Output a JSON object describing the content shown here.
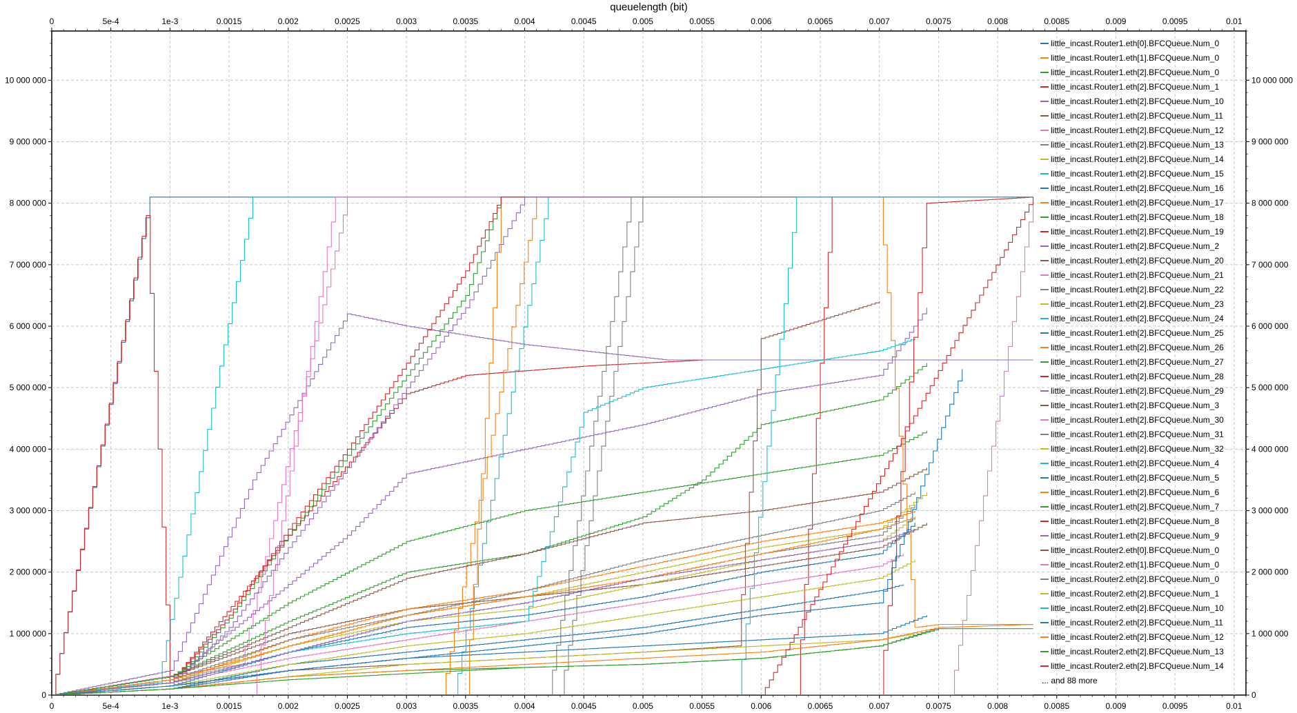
{
  "chart_data": {
    "type": "line",
    "title": "queuelength (bit)",
    "xlabel": "",
    "ylabel": "",
    "xlim": [
      0,
      0.0101
    ],
    "ylim": [
      0,
      10800000
    ],
    "x_ticks": [
      "0",
      "5e-4",
      "1e-3",
      "0.0015",
      "0.002",
      "0.0025",
      "0.003",
      "0.0035",
      "0.004",
      "0.0045",
      "0.005",
      "0.0055",
      "0.006",
      "0.0065",
      "0.007",
      "0.0075",
      "0.008",
      "0.0085",
      "0.009",
      "0.0095",
      "0.01"
    ],
    "x_tick_values": [
      0,
      0.0005,
      0.001,
      0.0015,
      0.002,
      0.0025,
      0.003,
      0.0035,
      0.004,
      0.0045,
      0.005,
      0.0055,
      0.006,
      0.0065,
      0.007,
      0.0075,
      0.008,
      0.0085,
      0.009,
      0.0095,
      0.01
    ],
    "y_ticks": [
      "0",
      "1 000 000",
      "2 000 000",
      "3 000 000",
      "4 000 000",
      "5 000 000",
      "6 000 000",
      "7 000 000",
      "8 000 000",
      "9 000 000",
      "10 000 000"
    ],
    "y_tick_values": [
      0,
      1000000,
      2000000,
      3000000,
      4000000,
      5000000,
      6000000,
      7000000,
      8000000,
      9000000,
      10000000
    ],
    "grid": true,
    "legend_position": "top-right",
    "legend_more": "... and 88 more",
    "series": [
      {
        "name": "little_incast.Router1.eth[0].BFCQueue.Num_0",
        "color": "#1f77b4",
        "x": [
          0,
          0.00083,
          0.0083
        ],
        "y": [
          0,
          8100000,
          8100000
        ]
      },
      {
        "name": "little_incast.Router1.eth[1].BFCQueue.Num_0",
        "color": "#ff7f0e",
        "x": [
          0,
          0.0025,
          0.0035,
          0.0038,
          0.0045,
          0.0055,
          0.007,
          0.0073,
          0.0075,
          0.0083
        ],
        "y": [
          0,
          0,
          0,
          8100000,
          8100000,
          8100000,
          8100000,
          1100000,
          1150000,
          1150000
        ]
      },
      {
        "name": "little_incast.Router1.eth[2].BFCQueue.Num_0",
        "color": "#2ca02c",
        "x": [
          0,
          0.001,
          0.0015,
          0.002,
          0.0025,
          0.003,
          0.0035,
          0.0038,
          0.0083
        ],
        "y": [
          0,
          150000,
          1250000,
          2600000,
          3900000,
          5200000,
          6500000,
          8100000,
          8100000
        ]
      },
      {
        "name": "little_incast.Router1.eth[2].BFCQueue.Num_1",
        "color": "#d62728",
        "x": [
          0,
          0.0008,
          0.001,
          0.002,
          0.003,
          0.0035,
          0.0045,
          0.0055,
          0.0083
        ],
        "y": [
          0,
          7800000,
          200000,
          2600000,
          4900000,
          5200000,
          5350000,
          5450000,
          5450000
        ]
      },
      {
        "name": "little_incast.Router1.eth[2].BFCQueue.Num_10",
        "color": "#9467bd",
        "x": [
          0,
          0.001,
          0.0017,
          0.0025,
          0.003,
          0.004,
          0.0052,
          0.0083
        ],
        "y": [
          0,
          400000,
          3500000,
          6200000,
          6000000,
          5700000,
          5450000,
          5450000
        ]
      },
      {
        "name": "little_incast.Router1.eth[2].BFCQueue.Num_11",
        "color": "#8c564b",
        "x": [
          0,
          0.001,
          0.002,
          0.003,
          0.004,
          0.005,
          0.006,
          0.007,
          0.0074
        ],
        "y": [
          0,
          300000,
          1000000,
          1400000,
          1600000,
          1800000,
          2100000,
          2400000,
          2800000
        ]
      },
      {
        "name": "little_incast.Router1.eth[2].BFCQueue.Num_12",
        "color": "#e377c2",
        "x": [
          0,
          0.0016,
          0.0025,
          0.0083
        ],
        "y": [
          0,
          500000,
          8100000,
          8100000
        ]
      },
      {
        "name": "little_incast.Router1.eth[2].BFCQueue.Num_13",
        "color": "#7f7f7f",
        "x": [
          0,
          0.001,
          0.002,
          0.003,
          0.004,
          0.005,
          0.006,
          0.007,
          0.0073
        ],
        "y": [
          0,
          200000,
          700000,
          1200000,
          1500000,
          1900000,
          2300000,
          2600000,
          3100000
        ]
      },
      {
        "name": "little_incast.Router1.eth[2].BFCQueue.Num_14",
        "color": "#bcbd22",
        "x": [
          0,
          0.001,
          0.002,
          0.003,
          0.004,
          0.005,
          0.006,
          0.007,
          0.0074
        ],
        "y": [
          0,
          250000,
          800000,
          1300000,
          1600000,
          2000000,
          2400000,
          2700000,
          3300000
        ]
      },
      {
        "name": "little_incast.Router1.eth[2].BFCQueue.Num_15",
        "color": "#17becf",
        "x": [
          0,
          0.0009,
          0.0017,
          0.0083
        ],
        "y": [
          0,
          200000,
          8100000,
          8100000
        ]
      },
      {
        "name": "little_incast.Router1.eth[2].BFCQueue.Num_16",
        "color": "#1f77b4",
        "x": [
          0,
          0.001,
          0.002,
          0.003,
          0.004,
          0.005,
          0.006,
          0.007,
          0.0072
        ],
        "y": [
          0,
          100000,
          500000,
          700000,
          900000,
          1100000,
          1400000,
          1700000,
          1800000
        ]
      },
      {
        "name": "little_incast.Router1.eth[2].BFCQueue.Num_17",
        "color": "#ff7f0e",
        "x": [
          0,
          0.001,
          0.002,
          0.003,
          0.004,
          0.005,
          0.006,
          0.007,
          0.0073
        ],
        "y": [
          0,
          200000,
          900000,
          1400000,
          1700000,
          2100000,
          2500000,
          2800000,
          3000000
        ]
      },
      {
        "name": "little_incast.Router1.eth[2].BFCQueue.Num_18",
        "color": "#2ca02c",
        "x": [
          0,
          0.001,
          0.002,
          0.003,
          0.004,
          0.005,
          0.0055,
          0.006,
          0.007,
          0.0074
        ],
        "y": [
          0,
          300000,
          1200000,
          2000000,
          2300000,
          2900000,
          3500000,
          4400000,
          4800000,
          5400000
        ]
      },
      {
        "name": "little_incast.Router1.eth[2].BFCQueue.Num_19",
        "color": "#d62728",
        "x": [
          0,
          0.004,
          0.0055,
          0.0059,
          0.0063,
          0.0066,
          0.0083
        ],
        "y": [
          0,
          0,
          0,
          0,
          0,
          8100000,
          8100000
        ]
      },
      {
        "name": "little_incast.Router1.eth[2].BFCQueue.Num_2",
        "color": "#9467bd",
        "x": [
          0,
          0.001,
          0.002,
          0.0025,
          0.003,
          0.004,
          0.005,
          0.006,
          0.007,
          0.0074
        ],
        "y": [
          0,
          250000,
          1800000,
          2600000,
          3600000,
          4000000,
          4400000,
          4900000,
          5200000,
          6300000
        ]
      },
      {
        "name": "little_incast.Router1.eth[2].BFCQueue.Num_20",
        "color": "#8c564b",
        "x": [
          0,
          0.001,
          0.002,
          0.003,
          0.004,
          0.005,
          0.0058,
          0.006,
          0.007
        ],
        "y": [
          0,
          150000,
          400000,
          500000,
          600000,
          700000,
          800000,
          5800000,
          6400000
        ]
      },
      {
        "name": "little_incast.Router1.eth[2].BFCQueue.Num_21",
        "color": "#e377c2",
        "x": [
          0,
          0.0017,
          0.0024,
          0.0083
        ],
        "y": [
          0,
          0,
          8100000,
          8100000
        ]
      },
      {
        "name": "little_incast.Router1.eth[2].BFCQueue.Num_22",
        "color": "#7f7f7f",
        "x": [
          0,
          0.0043,
          0.005,
          0.0083
        ],
        "y": [
          0,
          0,
          8100000,
          8100000
        ]
      },
      {
        "name": "little_incast.Router1.eth[2].BFCQueue.Num_23",
        "color": "#bcbd22",
        "x": [
          0,
          0.001,
          0.002,
          0.003,
          0.004,
          0.005,
          0.006,
          0.007,
          0.0073
        ],
        "y": [
          0,
          200000,
          800000,
          1200000,
          1400000,
          1800000,
          2200000,
          2500000,
          2900000
        ]
      },
      {
        "name": "little_incast.Router1.eth[2].BFCQueue.Num_24",
        "color": "#17becf",
        "x": [
          0,
          0.0034,
          0.0042,
          0.0083
        ],
        "y": [
          0,
          0,
          8100000,
          8100000
        ]
      },
      {
        "name": "little_incast.Router1.eth[2].BFCQueue.Num_25",
        "color": "#1f77b4",
        "x": [
          0,
          0.001,
          0.002,
          0.003,
          0.004,
          0.005,
          0.006,
          0.007,
          0.0073
        ],
        "y": [
          0,
          150000,
          700000,
          1100000,
          1300000,
          1600000,
          2000000,
          2300000,
          2800000
        ]
      },
      {
        "name": "little_incast.Router1.eth[2].BFCQueue.Num_26",
        "color": "#ff7f0e",
        "x": [
          0,
          0.0033,
          0.0041,
          0.0083
        ],
        "y": [
          0,
          0,
          8100000,
          8100000
        ]
      },
      {
        "name": "little_incast.Router1.eth[2].BFCQueue.Num_27",
        "color": "#2ca02c",
        "x": [
          0,
          0.001,
          0.002,
          0.003,
          0.004,
          0.005,
          0.006,
          0.007,
          0.0075
        ],
        "y": [
          0,
          100000,
          300000,
          400000,
          450000,
          500000,
          600000,
          800000,
          1100000
        ]
      },
      {
        "name": "little_incast.Router1.eth[2].BFCQueue.Num_28",
        "color": "#d62728",
        "x": [
          0,
          0.001,
          0.0015,
          0.002,
          0.0025,
          0.003,
          0.0035,
          0.0038,
          0.0083
        ],
        "y": [
          0,
          200000,
          1300000,
          2700000,
          4000000,
          5400000,
          6900000,
          8100000,
          8100000
        ]
      },
      {
        "name": "little_incast.Router1.eth[2].BFCQueue.Num_29",
        "color": "#9467bd",
        "x": [
          0,
          0.001,
          0.0015,
          0.002,
          0.0025,
          0.003,
          0.0035,
          0.004,
          0.0083
        ],
        "y": [
          0,
          150000,
          1100000,
          2400000,
          3700000,
          5000000,
          6300000,
          8100000,
          8100000
        ]
      },
      {
        "name": "little_incast.Router1.eth[2].BFCQueue.Num_3",
        "color": "#8c564b",
        "x": [
          0,
          0.001,
          0.002,
          0.003,
          0.004,
          0.005,
          0.006,
          0.007,
          0.0074
        ],
        "y": [
          0,
          300000,
          1100000,
          1900000,
          2300000,
          2800000,
          3000000,
          3300000,
          3700000
        ]
      },
      {
        "name": "little_incast.Router1.eth[2].BFCQueue.Num_30",
        "color": "#e377c2",
        "x": [
          0,
          0.001,
          0.002,
          0.003,
          0.004,
          0.005,
          0.006,
          0.007,
          0.0072
        ],
        "y": [
          0,
          200000,
          600000,
          900000,
          1200000,
          1500000,
          1800000,
          2100000,
          2300000
        ]
      },
      {
        "name": "little_incast.Router1.eth[2].BFCQueue.Num_31",
        "color": "#7f7f7f",
        "x": [
          0,
          0.001,
          0.002,
          0.003,
          0.004,
          0.005,
          0.006,
          0.007,
          0.0073
        ],
        "y": [
          0,
          250000,
          900000,
          1300000,
          1700000,
          2200000,
          2600000,
          3000000,
          3300000
        ]
      },
      {
        "name": "little_incast.Router1.eth[2].BFCQueue.Num_32",
        "color": "#bcbd22",
        "x": [
          0,
          0.001,
          0.002,
          0.003,
          0.004,
          0.005,
          0.006,
          0.007,
          0.0073
        ],
        "y": [
          0,
          150000,
          500000,
          800000,
          1000000,
          1300000,
          1600000,
          1900000,
          2200000
        ]
      },
      {
        "name": "little_incast.Router1.eth[2].BFCQueue.Num_4",
        "color": "#17becf",
        "x": [
          0,
          0.001,
          0.002,
          0.003,
          0.004,
          0.0045,
          0.005,
          0.006,
          0.007,
          0.0073
        ],
        "y": [
          0,
          200000,
          700000,
          1000000,
          1200000,
          4600000,
          5000000,
          5300000,
          5600000,
          5800000
        ]
      },
      {
        "name": "little_incast.Router1.eth[2].BFCQueue.Num_5",
        "color": "#1f77b4",
        "x": [
          0,
          0.001,
          0.002,
          0.003,
          0.004,
          0.005,
          0.006,
          0.007,
          0.0077
        ],
        "y": [
          0,
          100000,
          400000,
          600000,
          800000,
          1000000,
          1300000,
          1500000,
          5300000
        ]
      },
      {
        "name": "little_incast.Router1.eth[2].BFCQueue.Num_6",
        "color": "#ff7f0e",
        "x": [
          0,
          0.001,
          0.002,
          0.003,
          0.004,
          0.005,
          0.006,
          0.007,
          0.0073
        ],
        "y": [
          0,
          250000,
          800000,
          1300000,
          1600000,
          1900000,
          2300000,
          2700000,
          2900000
        ]
      },
      {
        "name": "little_incast.Router1.eth[2].BFCQueue.Num_7",
        "color": "#2ca02c",
        "x": [
          0,
          0.001,
          0.002,
          0.003,
          0.004,
          0.005,
          0.006,
          0.007,
          0.0074
        ],
        "y": [
          0,
          300000,
          1500000,
          2500000,
          3000000,
          3300000,
          3600000,
          3900000,
          4300000
        ]
      },
      {
        "name": "little_incast.Router1.eth[2].BFCQueue.Num_8",
        "color": "#d62728",
        "x": [
          0,
          0.005,
          0.0063,
          0.007,
          0.0074,
          0.0083
        ],
        "y": [
          0,
          0,
          0,
          0,
          8000000,
          8100000
        ]
      },
      {
        "name": "little_incast.Router1.eth[2].BFCQueue.Num_9",
        "color": "#9467bd",
        "x": [
          0,
          0.001,
          0.002,
          0.003,
          0.004,
          0.005,
          0.006,
          0.007,
          0.0073
        ],
        "y": [
          0,
          200000,
          700000,
          1200000,
          1500000,
          1900000,
          2200000,
          2500000,
          2700000
        ]
      },
      {
        "name": "little_incast.Router2.eth[0].BFCQueue.Num_0",
        "color": "#8c564b",
        "x": [
          0,
          0.0055,
          0.006,
          0.0083
        ],
        "y": [
          0,
          0,
          0,
          0
        ]
      },
      {
        "name": "little_incast.Router2.eth[1].BFCQueue.Num_0",
        "color": "#e377c2",
        "x": [
          0,
          0.004,
          0.007,
          0.0075,
          0.0076,
          0.0083
        ],
        "y": [
          0,
          0,
          0,
          0,
          0,
          8100000
        ]
      },
      {
        "name": "little_incast.Router2.eth[2].BFCQueue.Num_0",
        "color": "#7f7f7f",
        "x": [
          0,
          0.0042,
          0.0049,
          0.0083
        ],
        "y": [
          0,
          0,
          8100000,
          8100000
        ]
      },
      {
        "name": "little_incast.Router2.eth[2].BFCQueue.Num_1",
        "color": "#bcbd22",
        "x": [
          0,
          0.001,
          0.002,
          0.003,
          0.004,
          0.005,
          0.006,
          0.007,
          0.0073
        ],
        "y": [
          0,
          100000,
          300000,
          500000,
          600000,
          700000,
          800000,
          900000,
          1000000
        ]
      },
      {
        "name": "little_incast.Router2.eth[2].BFCQueue.Num_10",
        "color": "#17becf",
        "x": [
          0,
          0.0058,
          0.0063,
          0.0083
        ],
        "y": [
          0,
          0,
          8100000,
          8100000
        ]
      },
      {
        "name": "little_incast.Router2.eth[2].BFCQueue.Num_11",
        "color": "#1f77b4",
        "x": [
          0,
          0.001,
          0.002,
          0.003,
          0.004,
          0.005,
          0.006,
          0.007,
          0.0074
        ],
        "y": [
          0,
          150000,
          400000,
          600000,
          700000,
          800000,
          900000,
          1000000,
          1300000
        ]
      },
      {
        "name": "little_incast.Router2.eth[2].BFCQueue.Num_12",
        "color": "#ff7f0e",
        "x": [
          0,
          0.001,
          0.002,
          0.003,
          0.004,
          0.005,
          0.006,
          0.007,
          0.0075,
          0.0083
        ],
        "y": [
          0,
          100000,
          300000,
          400000,
          500000,
          600000,
          700000,
          900000,
          1100000,
          1150000
        ]
      },
      {
        "name": "little_incast.Router2.eth[2].BFCQueue.Num_13",
        "color": "#2ca02c",
        "x": [
          0,
          0.001,
          0.002,
          0.003,
          0.004,
          0.005,
          0.006,
          0.007,
          0.0075,
          0.0083
        ],
        "y": [
          0,
          100000,
          250000,
          350000,
          450000,
          500000,
          600000,
          800000,
          1080000,
          1080000
        ]
      },
      {
        "name": "little_incast.Router2.eth[2].BFCQueue.Num_14",
        "color": "#d62728",
        "x": [
          0,
          0.0056,
          0.006,
          0.0083
        ],
        "y": [
          0,
          0,
          0,
          8100000
        ]
      }
    ]
  }
}
